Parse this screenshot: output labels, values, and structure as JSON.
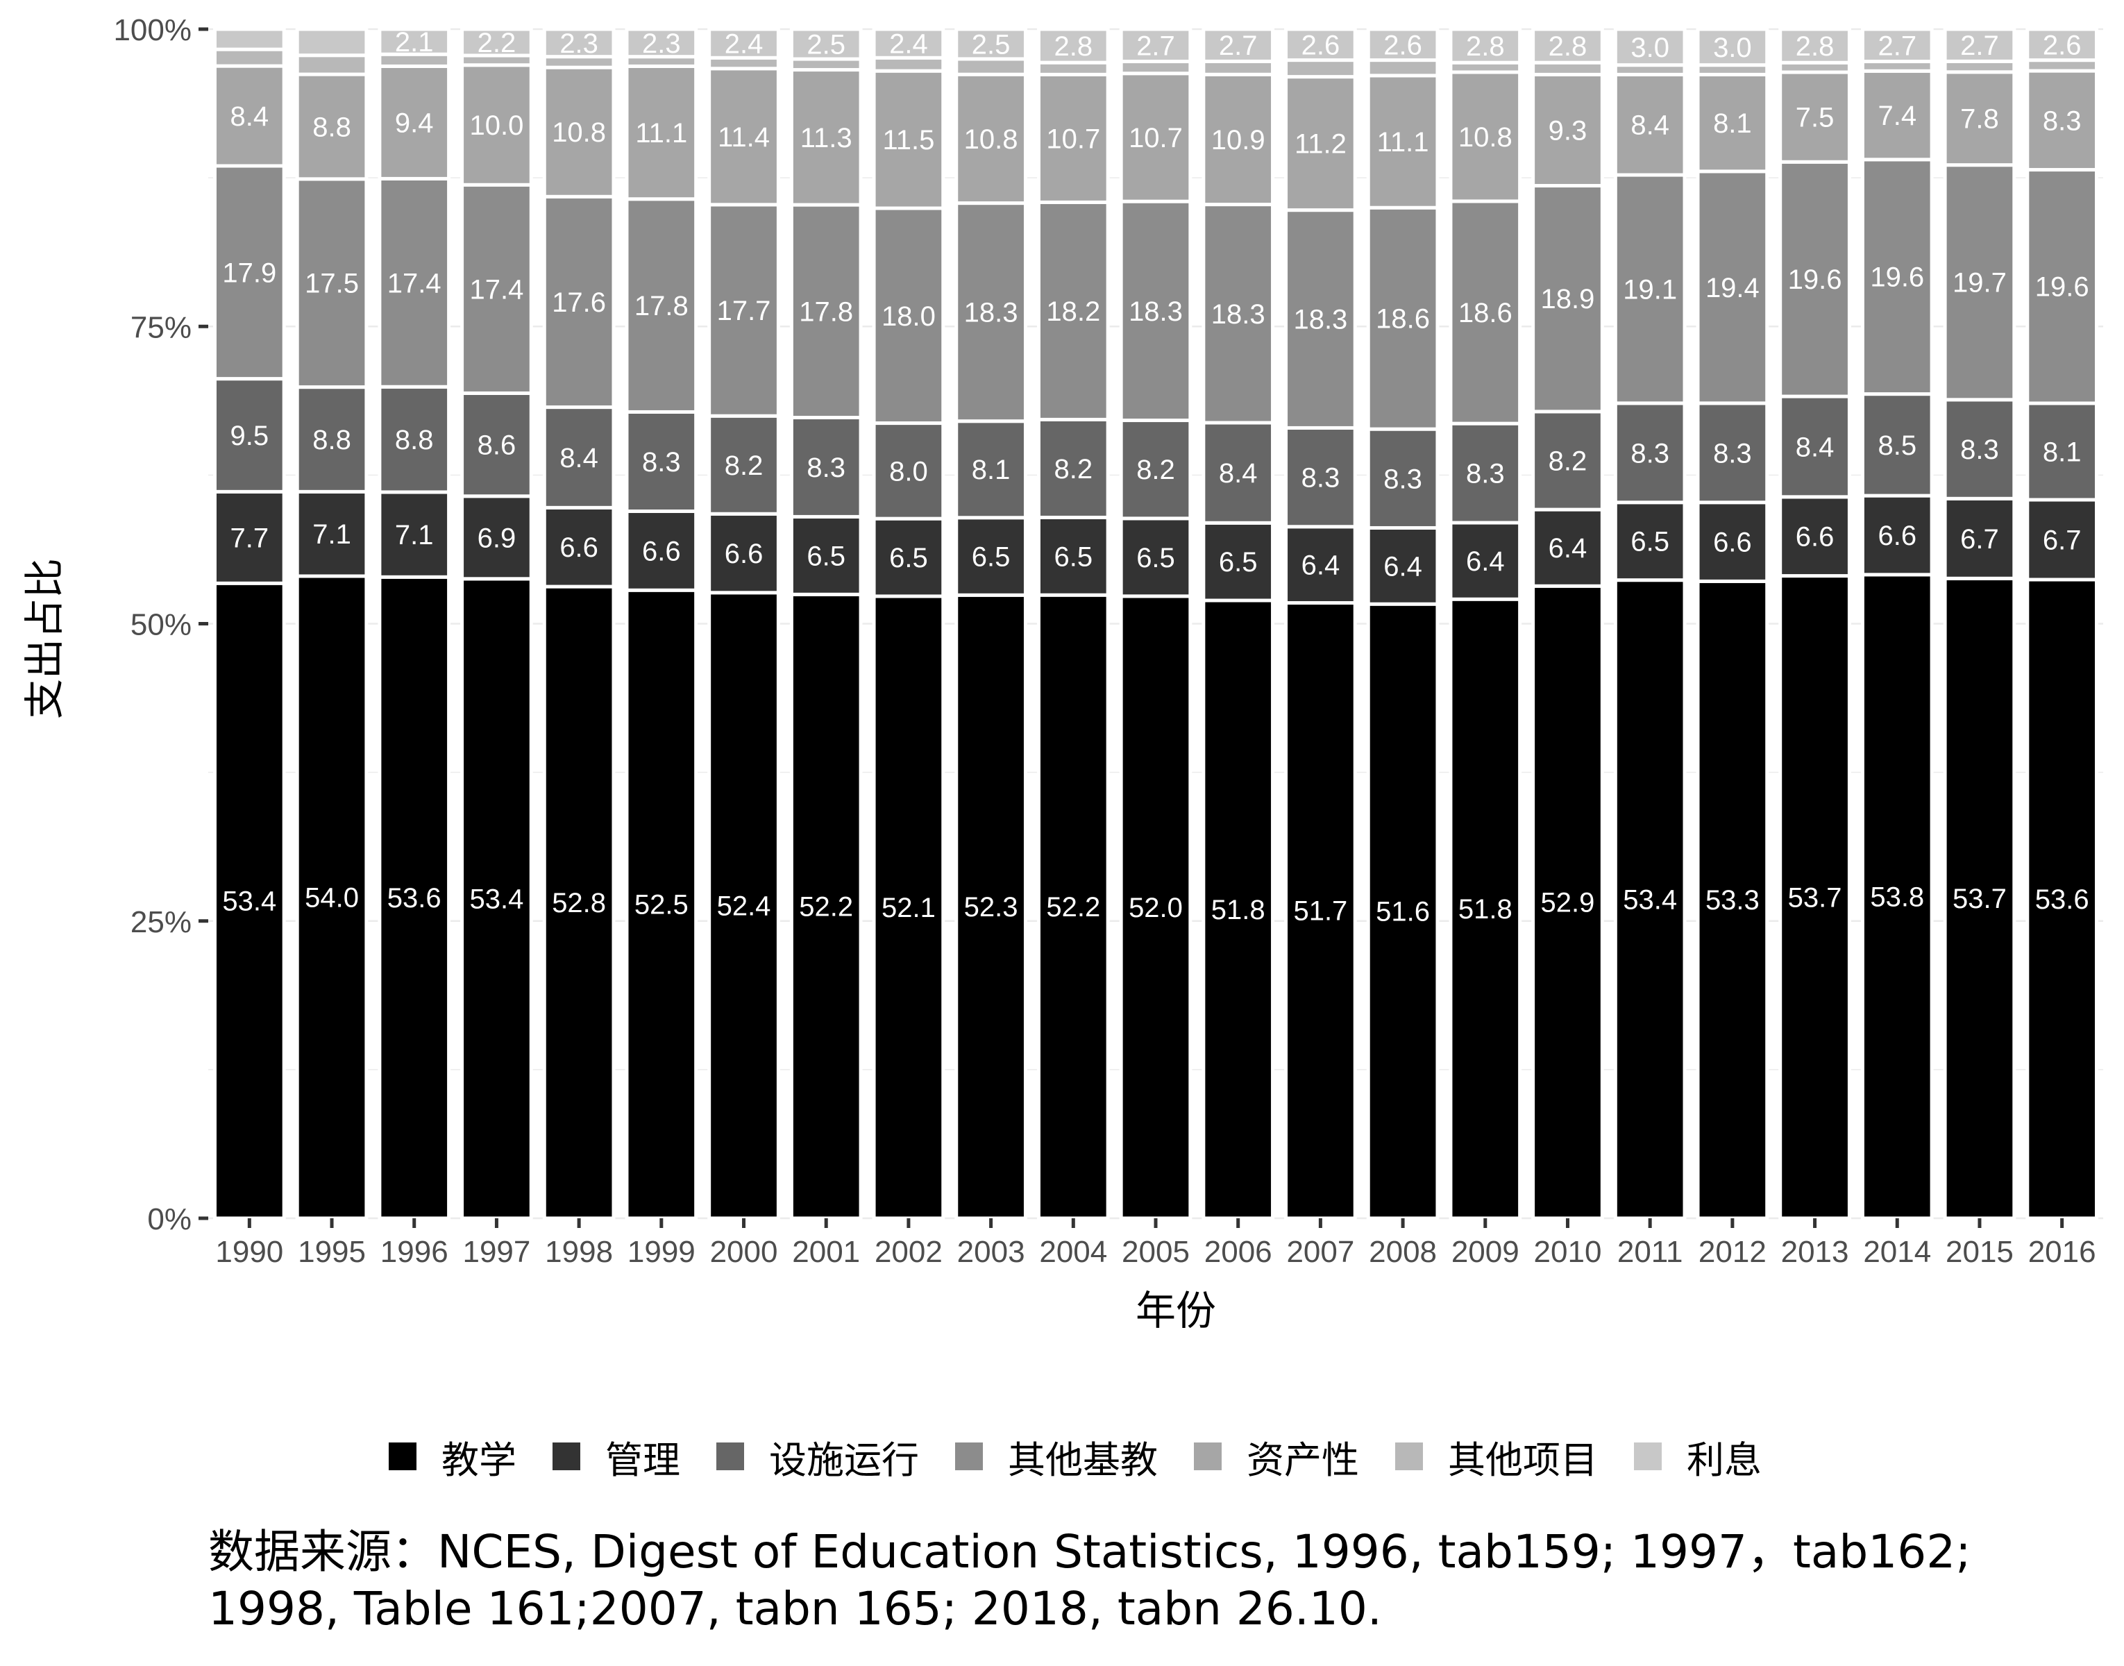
{
  "chart_data": {
    "type": "bar",
    "stacked": true,
    "percent": true,
    "xlabel": "年份",
    "ylabel": "支出占比",
    "ylim": [
      0,
      100
    ],
    "yticks": [
      "0%",
      "25%",
      "50%",
      "75%",
      "100%"
    ],
    "grid": true,
    "legend_position": "bottom",
    "categories": [
      "1990",
      "1995",
      "1996",
      "1997",
      "1998",
      "1999",
      "2000",
      "2001",
      "2002",
      "2003",
      "2004",
      "2005",
      "2006",
      "2007",
      "2008",
      "2009",
      "2010",
      "2011",
      "2012",
      "2013",
      "2014",
      "2015",
      "2016"
    ],
    "series": [
      {
        "name": "教学",
        "color": "#000000",
        "labeled": true,
        "values": [
          53.4,
          54.0,
          53.6,
          53.4,
          52.8,
          52.5,
          52.4,
          52.2,
          52.1,
          52.3,
          52.2,
          52.0,
          51.8,
          51.7,
          51.6,
          51.8,
          52.9,
          53.4,
          53.3,
          53.7,
          53.8,
          53.7,
          53.6
        ]
      },
      {
        "name": "管理",
        "color": "#333333",
        "labeled": true,
        "values": [
          7.7,
          7.1,
          7.1,
          6.9,
          6.6,
          6.6,
          6.6,
          6.5,
          6.5,
          6.5,
          6.5,
          6.5,
          6.5,
          6.4,
          6.4,
          6.4,
          6.4,
          6.5,
          6.6,
          6.6,
          6.6,
          6.7,
          6.7
        ]
      },
      {
        "name": "设施运行",
        "color": "#666666",
        "labeled": true,
        "values": [
          9.5,
          8.8,
          8.8,
          8.6,
          8.4,
          8.3,
          8.2,
          8.3,
          8.0,
          8.1,
          8.2,
          8.2,
          8.4,
          8.3,
          8.3,
          8.3,
          8.2,
          8.3,
          8.3,
          8.4,
          8.5,
          8.3,
          8.1
        ]
      },
      {
        "name": "其他基教",
        "color": "#8c8c8c",
        "labeled": true,
        "values": [
          17.9,
          17.5,
          17.4,
          17.4,
          17.6,
          17.8,
          17.7,
          17.8,
          18.0,
          18.3,
          18.2,
          18.3,
          18.3,
          18.3,
          18.6,
          18.6,
          18.9,
          19.1,
          19.4,
          19.6,
          19.6,
          19.7,
          19.6
        ]
      },
      {
        "name": "资产性",
        "color": "#a6a6a6",
        "labeled": true,
        "values": [
          8.4,
          8.8,
          9.4,
          10.0,
          10.8,
          11.1,
          11.4,
          11.3,
          11.5,
          10.8,
          10.7,
          10.7,
          10.9,
          11.2,
          11.1,
          10.8,
          9.3,
          8.4,
          8.1,
          7.5,
          7.4,
          7.8,
          8.3
        ]
      },
      {
        "name": "其他项目",
        "color": "#b8b8b8",
        "labeled": false,
        "values": [
          1.4,
          1.6,
          1.0,
          0.8,
          0.9,
          0.8,
          0.9,
          0.9,
          1.1,
          1.3,
          1.0,
          1.0,
          1.1,
          1.4,
          1.3,
          0.8,
          1.0,
          0.8,
          0.8,
          0.8,
          0.8,
          0.9,
          0.9
        ]
      },
      {
        "name": "利息",
        "color": "#c8c8c8",
        "labeled": true,
        "values": [
          1.7,
          2.2,
          2.1,
          2.2,
          2.3,
          2.3,
          2.4,
          2.5,
          2.4,
          2.5,
          2.8,
          2.7,
          2.7,
          2.6,
          2.6,
          2.8,
          2.8,
          3.0,
          3.0,
          2.8,
          2.7,
          2.7,
          2.6
        ],
        "value_labels": [
          "",
          "",
          "2.1",
          "2.2",
          "2.3",
          "2.3",
          "2.4",
          "2.5",
          "2.4",
          "2.5",
          "2.8",
          "2.7",
          "2.7",
          "2.6",
          "2.6",
          "2.8",
          "2.8",
          "3.0",
          "3.0",
          "2.8",
          "2.7",
          "2.7",
          "2.6"
        ]
      }
    ]
  },
  "caption": "数据来源：NCES, Digest of Education Statistics, 1996, tab159; 1997，tab162; 1998, Table 161;2007, tabn 165; 2018, tabn 26.10."
}
